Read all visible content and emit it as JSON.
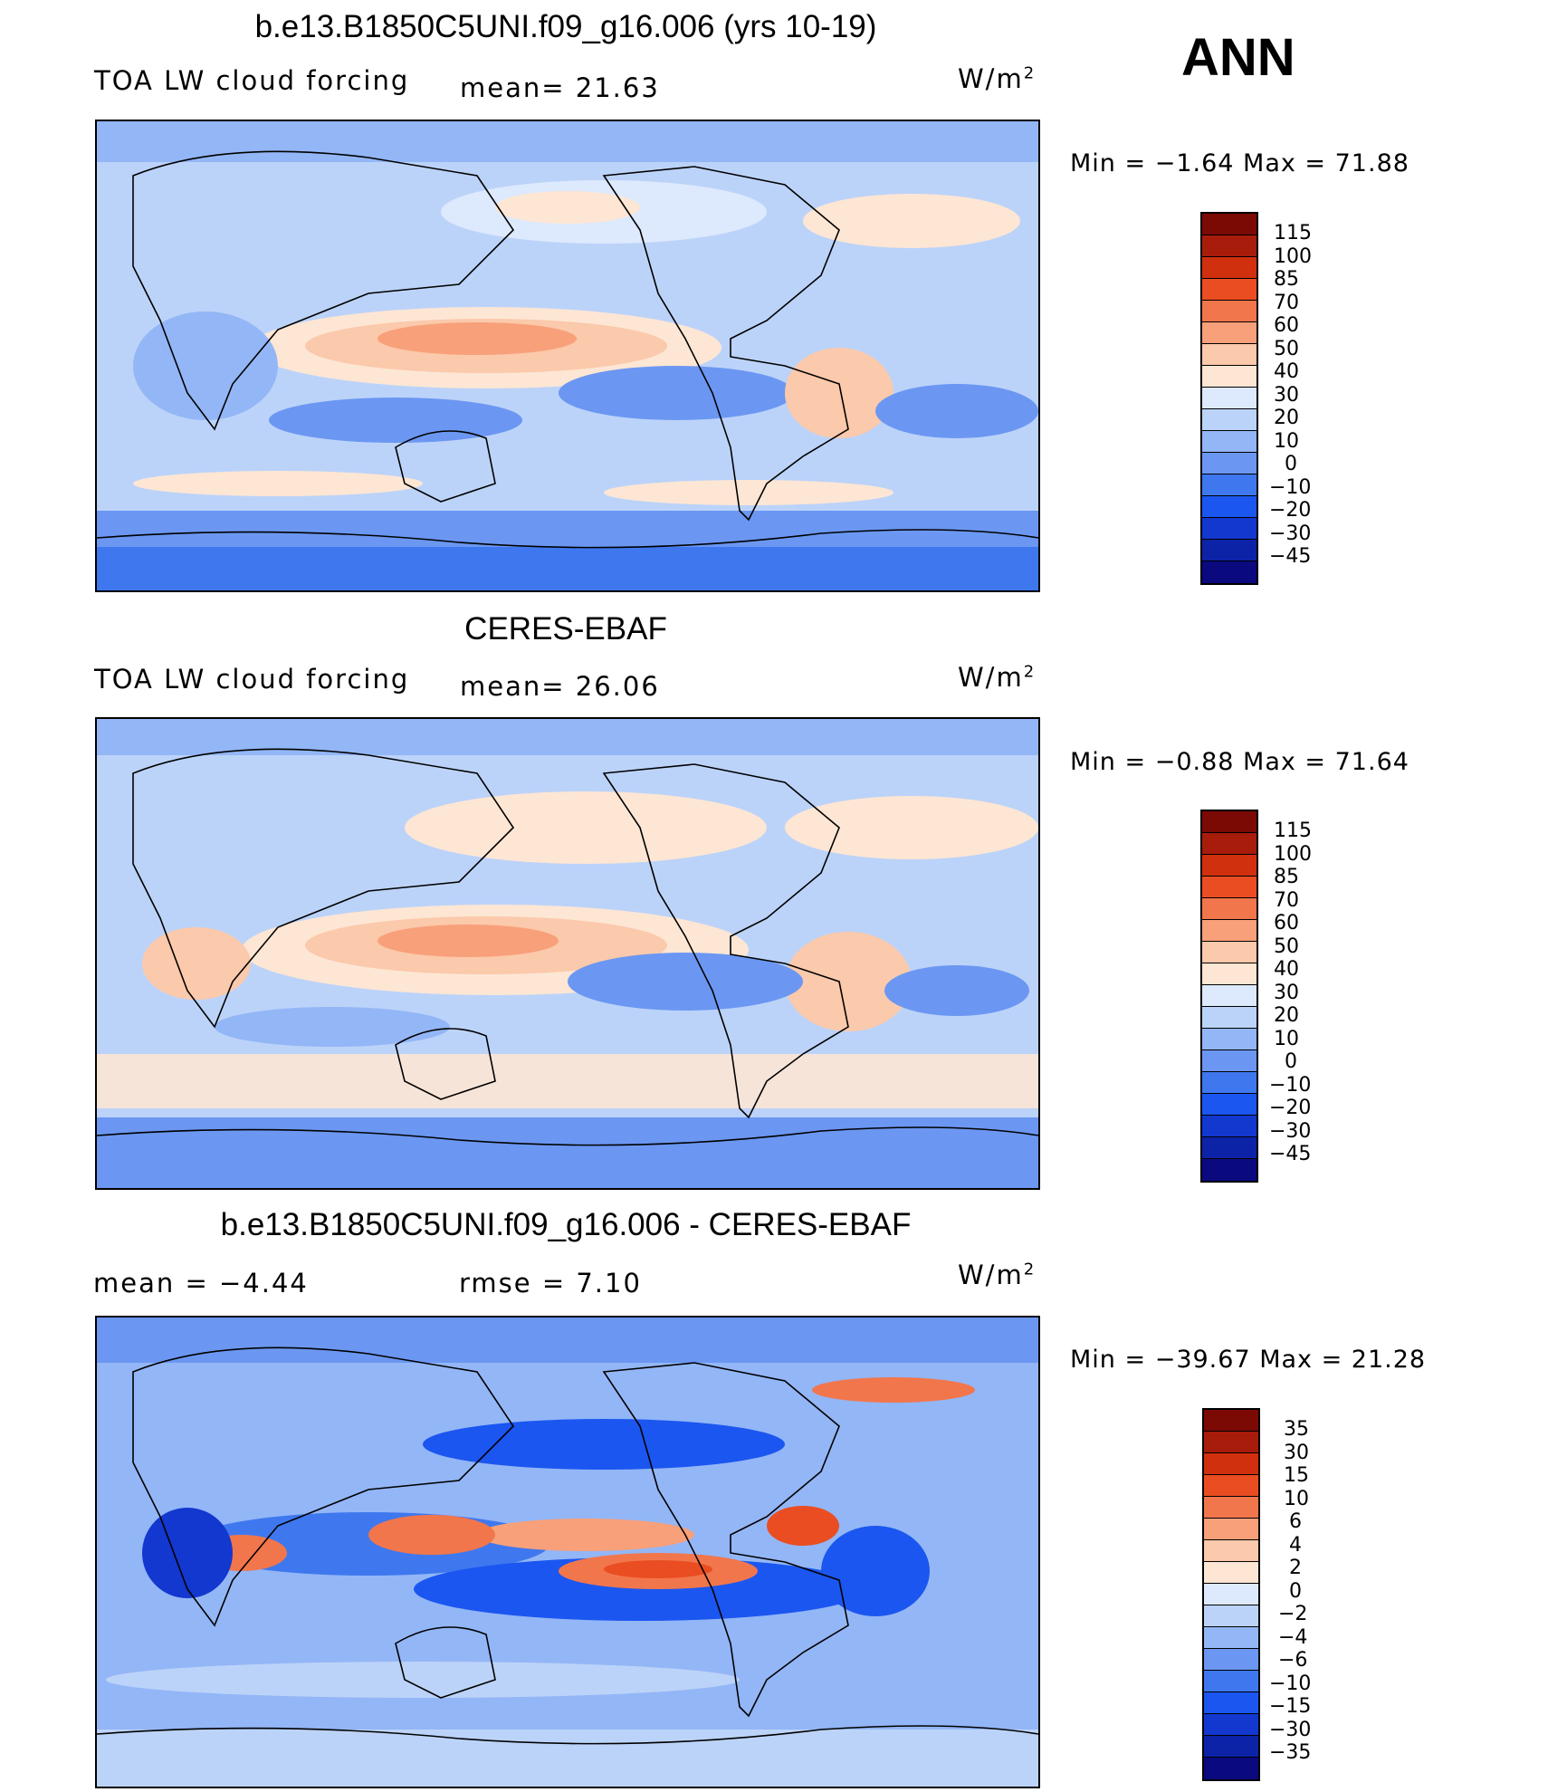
{
  "season": "ANN",
  "units": "W/m",
  "units_exp": "2",
  "palette_model": [
    "#0a0a7e",
    "#0c23a8",
    "#1238cf",
    "#1b56f0",
    "#3f78ee",
    "#6b97f2",
    "#93b6f6",
    "#bcd3f9",
    "#dde9fc",
    "#fde6d4",
    "#fbc9ab",
    "#f8a07a",
    "#f2764c",
    "#ea4d22",
    "#d1300f",
    "#a81c0b",
    "#7b0a05"
  ],
  "palette_diff": [
    "#0a0a7e",
    "#0c23a8",
    "#1238cf",
    "#1b56f0",
    "#3f78ee",
    "#6b97f2",
    "#93b6f6",
    "#bcd3f9",
    "#dde9fc",
    "#fde6d4",
    "#fbc9ab",
    "#f8a07a",
    "#f2764c",
    "#ea4d22",
    "#d1300f",
    "#a81c0b",
    "#7b0a05"
  ],
  "panels": [
    {
      "title": "b.e13.B1850C5UNI.f09_g16.006 (yrs 10-19)",
      "left": "TOA  LW  cloud  forcing",
      "mid": "mean=   21.63",
      "min_label": "Min  =    −1.64  Max  =    71.88",
      "levels": [
        "115",
        "100",
        "85",
        "70",
        "60",
        "50",
        "40",
        "30",
        "20",
        "10",
        "0",
        "−10",
        "−20",
        "−30",
        "−45"
      ]
    },
    {
      "title": "CERES-EBAF",
      "left": "TOA  LW  cloud  forcing",
      "mid": "mean=   26.06",
      "min_label": "Min  =    −0.88  Max  =    71.64",
      "levels": [
        "115",
        "100",
        "85",
        "70",
        "60",
        "50",
        "40",
        "30",
        "20",
        "10",
        "0",
        "−10",
        "−20",
        "−30",
        "−45"
      ]
    },
    {
      "title": "b.e13.B1850C5UNI.f09_g16.006 - CERES-EBAF",
      "left": "mean  =    −4.44",
      "mid": "rmse  =     7.10",
      "min_label": "Min  = −39.67  Max  =    21.28",
      "levels": [
        "35",
        "30",
        "15",
        "10",
        "6",
        "4",
        "2",
        "0",
        "−2",
        "−4",
        "−6",
        "−10",
        "−15",
        "−30",
        "−35"
      ]
    }
  ]
}
